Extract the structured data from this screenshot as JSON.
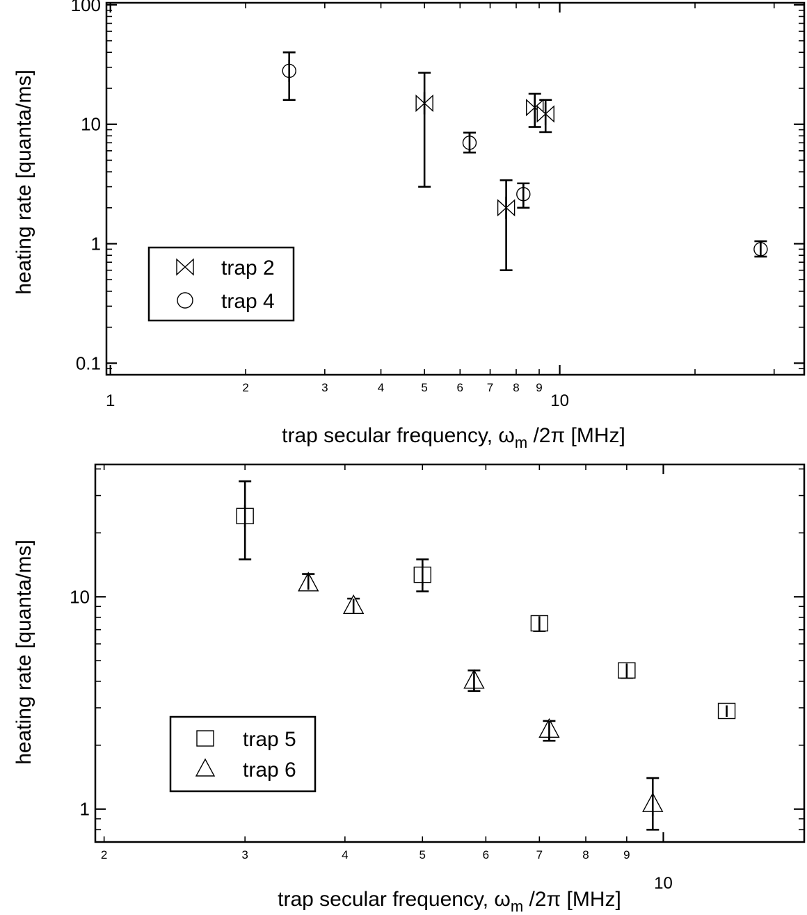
{
  "chart_data": [
    {
      "type": "scatter",
      "x_scale": "log",
      "y_scale": "log",
      "xlim": [
        0.98,
        35
      ],
      "ylim": [
        0.08,
        104
      ],
      "xlabel": {
        "main": "trap secular frequency, ω",
        "sub": "m",
        "rest": " /2π [MHz]"
      },
      "ylabel": "heating rate [quanta/ms]",
      "x_ticklabels": [
        "1",
        "2",
        "3",
        "4",
        "5",
        "6",
        "7",
        "8",
        "9",
        "10"
      ],
      "y_ticklabels": [
        "0.1",
        "1",
        "10",
        "100"
      ],
      "legend_position": "lower-left",
      "series": [
        {
          "name": "trap 2",
          "marker": "bowtie",
          "points": [
            {
              "x": 5.0,
              "y": 15,
              "ylo": 3,
              "yhi": 27
            },
            {
              "x": 7.6,
              "y": 2.0,
              "ylo": 0.6,
              "yhi": 3.4
            },
            {
              "x": 8.8,
              "y": 13.8,
              "ylo": 9.5,
              "yhi": 18
            },
            {
              "x": 9.3,
              "y": 12.2,
              "ylo": 8.6,
              "yhi": 16
            }
          ]
        },
        {
          "name": "trap 4",
          "marker": "circle",
          "points": [
            {
              "x": 2.5,
              "y": 28,
              "ylo": 16,
              "yhi": 40
            },
            {
              "x": 6.3,
              "y": 7.0,
              "ylo": 5.8,
              "yhi": 8.5
            },
            {
              "x": 8.3,
              "y": 2.6,
              "ylo": 2.0,
              "yhi": 3.2
            },
            {
              "x": 28.0,
              "y": 0.9,
              "ylo": 0.78,
              "yhi": 1.05
            }
          ]
        }
      ]
    },
    {
      "type": "scatter",
      "x_scale": "log",
      "y_scale": "log",
      "xlim": [
        1.95,
        15
      ],
      "ylim": [
        0.7,
        42
      ],
      "xlabel": {
        "main": "trap secular frequency, ω",
        "sub": "m",
        "rest": " /2π [MHz]"
      },
      "ylabel": "heating rate [quanta/ms]",
      "x_ticklabels": [
        "2",
        "3",
        "4",
        "5",
        "6",
        "7",
        "8",
        "9",
        "10"
      ],
      "y_ticklabels": [
        "1",
        "10"
      ],
      "legend_position": "lower-left",
      "series": [
        {
          "name": "trap 5",
          "marker": "square",
          "points": [
            {
              "x": 3.0,
              "y": 24,
              "ylo": 15,
              "yhi": 35
            },
            {
              "x": 5.0,
              "y": 12.7,
              "ylo": 10.6,
              "yhi": 15
            },
            {
              "x": 7.0,
              "y": 7.5,
              "ylo": 6.9,
              "yhi": 8.1
            },
            {
              "x": 9.0,
              "y": 4.5,
              "ylo": 4.15,
              "yhi": 4.85
            },
            {
              "x": 12.0,
              "y": 2.9,
              "ylo": 2.72,
              "yhi": 3.08
            }
          ]
        },
        {
          "name": "trap 6",
          "marker": "triangle",
          "points": [
            {
              "x": 3.6,
              "y": 11.5,
              "ylo": 10.8,
              "yhi": 12.8
            },
            {
              "x": 4.1,
              "y": 9.0,
              "ylo": 8.4,
              "yhi": 9.8
            },
            {
              "x": 5.8,
              "y": 4.0,
              "ylo": 3.6,
              "yhi": 4.5
            },
            {
              "x": 7.2,
              "y": 2.35,
              "ylo": 2.1,
              "yhi": 2.6
            },
            {
              "x": 9.7,
              "y": 1.05,
              "ylo": 0.8,
              "yhi": 1.4
            }
          ]
        }
      ]
    }
  ]
}
